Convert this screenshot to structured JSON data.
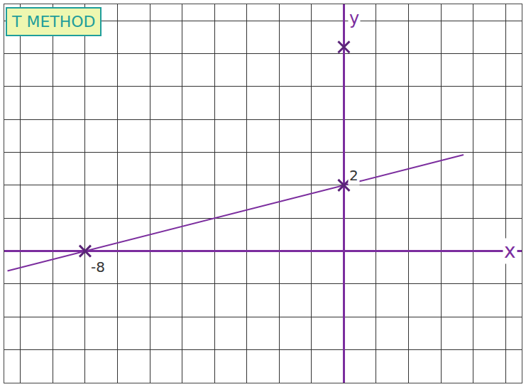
{
  "chart_data": {
    "type": "line",
    "title": "T METHOD",
    "xlabel": "x",
    "ylabel": "y",
    "series": [
      {
        "type": "line",
        "color": "#7b2d9e",
        "line_style": "solid",
        "x": [
          -10.4,
          -8,
          0,
          3.7
        ],
        "values": [
          -0.6,
          0,
          2,
          2.925
        ]
      },
      {
        "type": "scatter",
        "color": "#5a2478",
        "marker": "x",
        "x": [
          -8,
          0,
          0
        ],
        "values": [
          0,
          2,
          6.2
        ]
      }
    ],
    "annotations": [
      {
        "x": -8,
        "y": 0,
        "text": "-8"
      },
      {
        "x": 0,
        "y": 2,
        "text": "2"
      }
    ],
    "xlim": [
      -10.5,
      5.5
    ],
    "ylim": [
      -4,
      7.5
    ],
    "xticks": [
      -10,
      -9,
      -8,
      -7,
      -6,
      -5,
      -4,
      -3,
      -2,
      -1,
      0,
      1,
      2,
      3,
      4,
      5
    ],
    "yticks": [
      -4,
      -3,
      -2,
      -1,
      0,
      1,
      2,
      3,
      4,
      5,
      6,
      7
    ],
    "tick_labels": false,
    "grid": true
  }
}
